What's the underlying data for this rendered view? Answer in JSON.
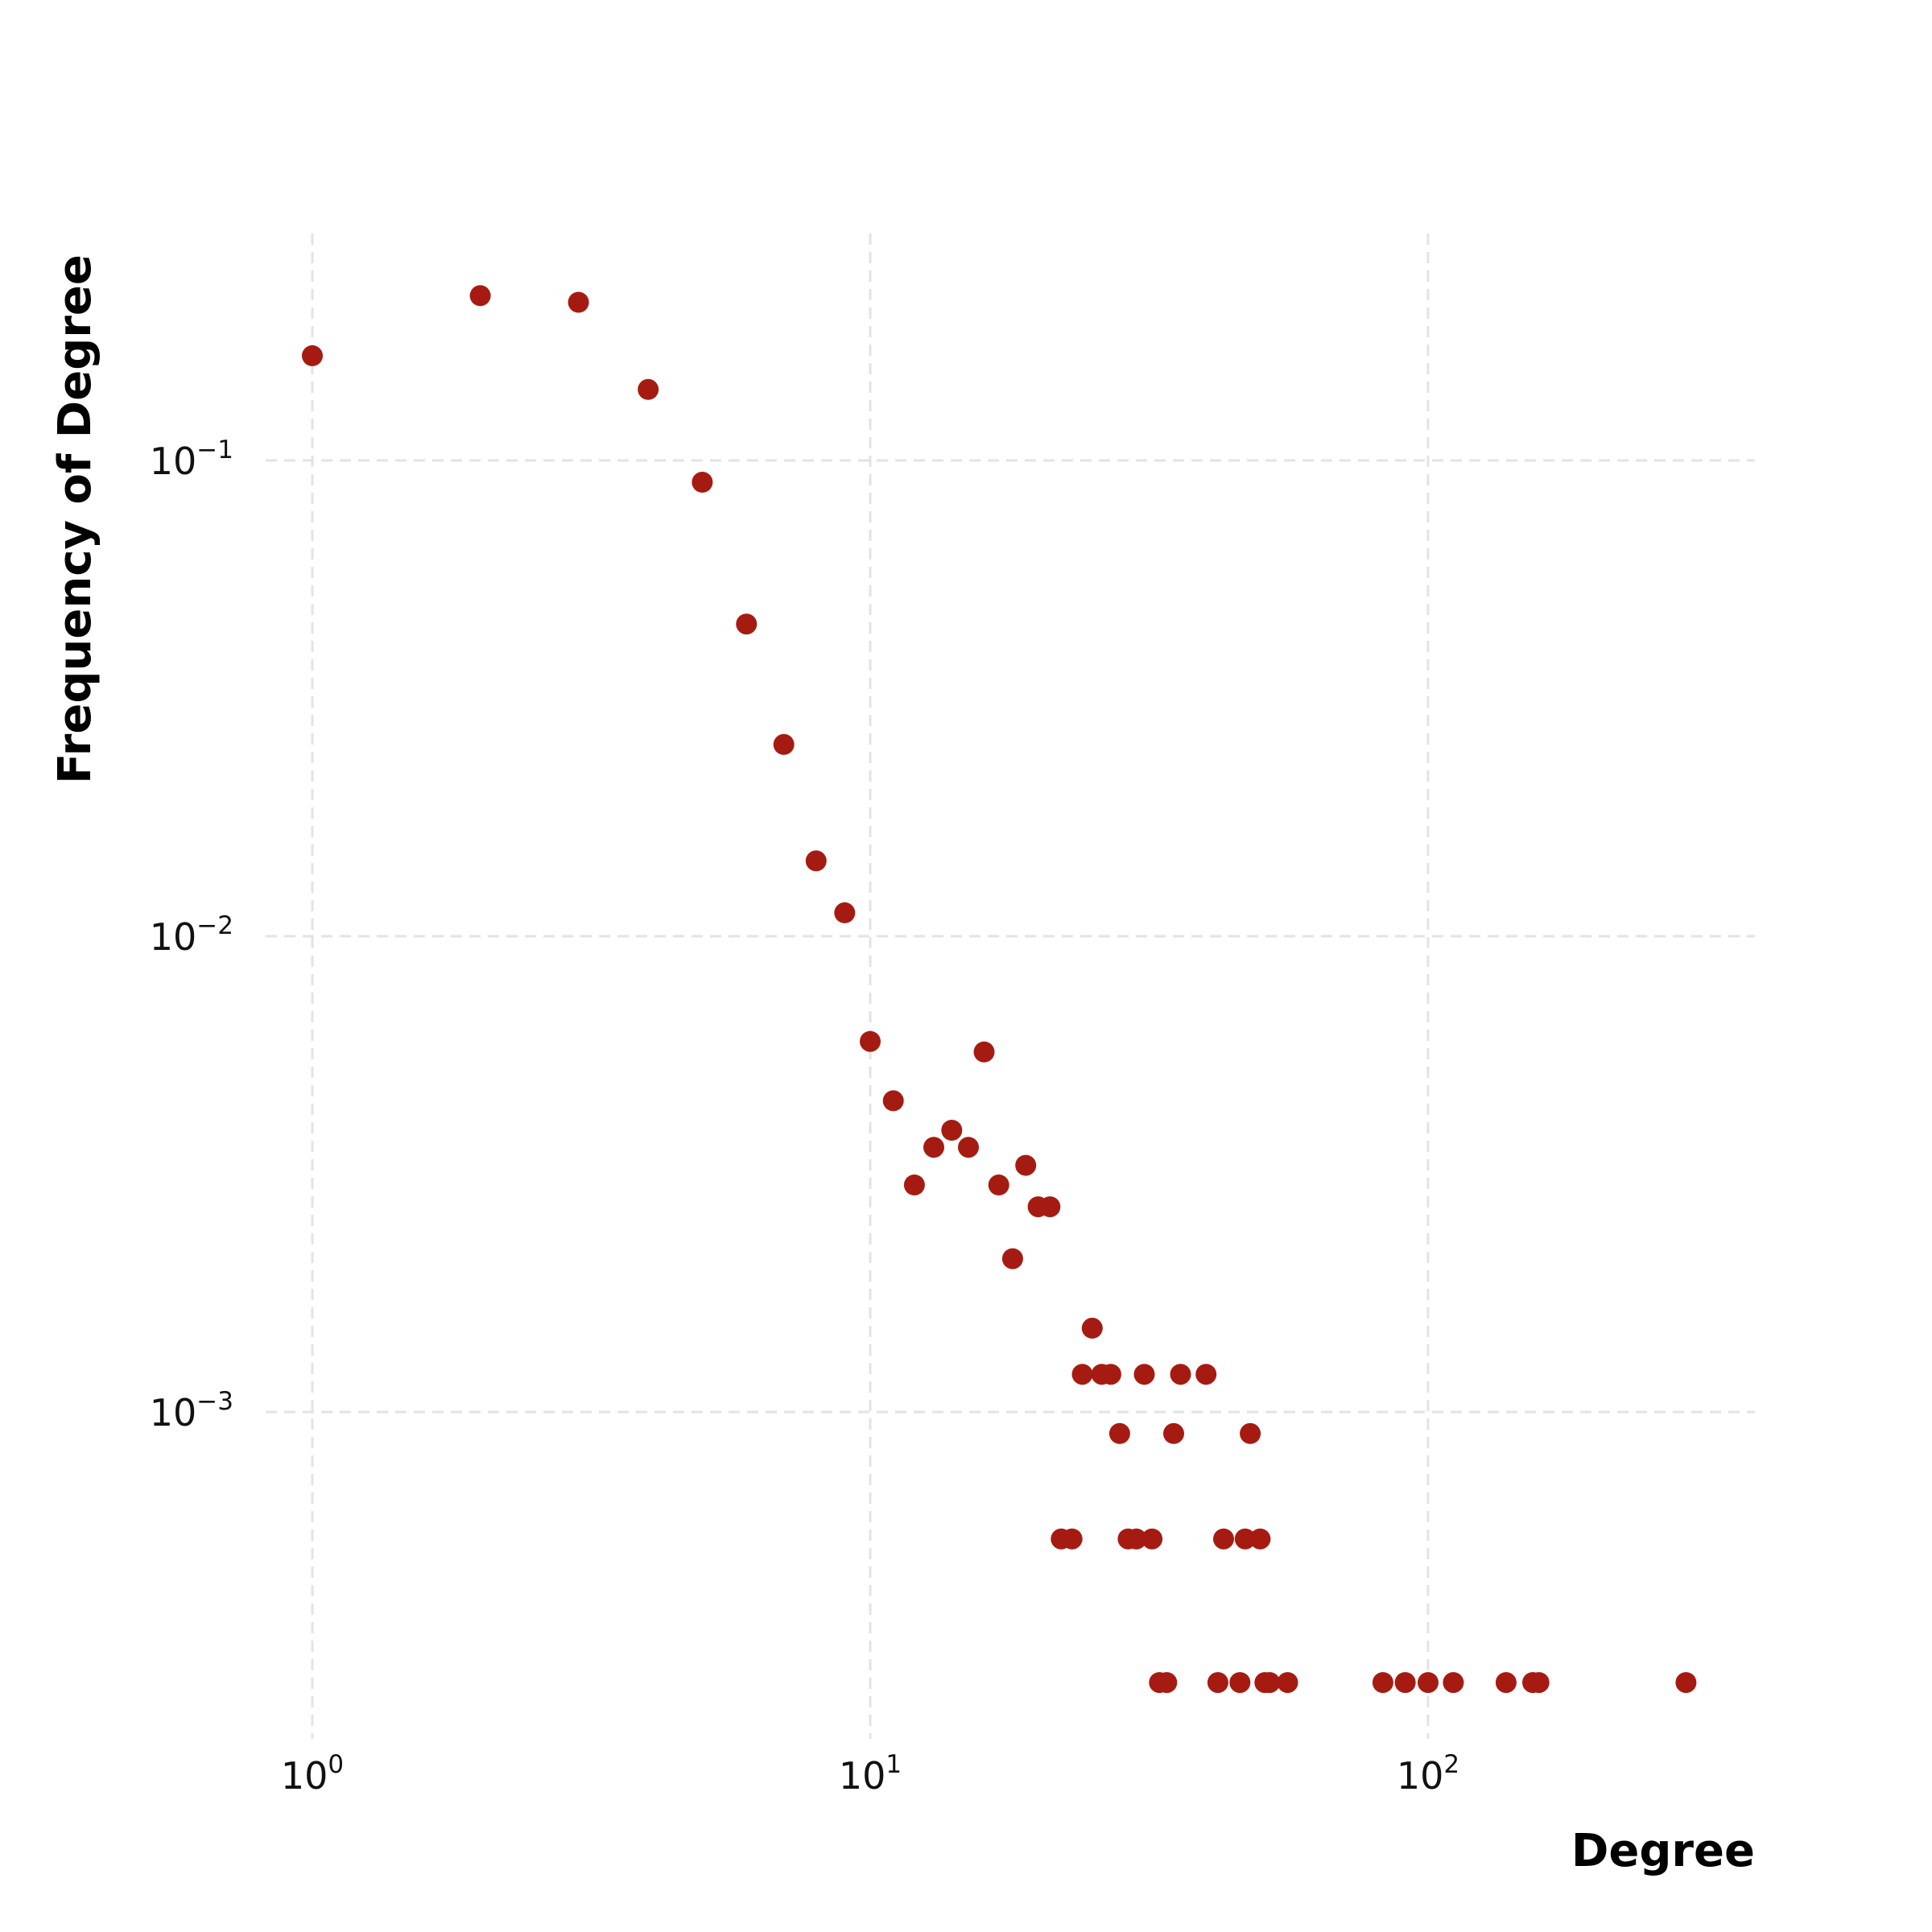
{
  "chart_data": {
    "type": "scatter",
    "title": "",
    "xlabel": "Degree",
    "ylabel": "Frequency of Degree",
    "x_scale": "log",
    "y_scale": "log",
    "xlim": [
      0.56,
      470
    ],
    "ylim": [
      0.00019,
      0.52
    ],
    "grid": true,
    "legend": "none",
    "point_color": "#a61b11",
    "x_ticks": [
      {
        "value": 1,
        "base": "10",
        "exp": "0"
      },
      {
        "value": 10,
        "base": "10",
        "exp": "1"
      },
      {
        "value": 100,
        "base": "10",
        "exp": "2"
      }
    ],
    "y_ticks": [
      {
        "value": 0.1,
        "base": "10",
        "exp": "−1"
      },
      {
        "value": 0.01,
        "base": "10",
        "exp": "−2"
      },
      {
        "value": 0.001,
        "base": "10",
        "exp": "−3"
      }
    ],
    "series": [
      {
        "points": [
          [
            1,
            0.166
          ],
          [
            2,
            0.222
          ],
          [
            3,
            0.215
          ],
          [
            4,
            0.141
          ],
          [
            5,
            0.09
          ],
          [
            6,
            0.0453
          ],
          [
            7,
            0.0253
          ],
          [
            8,
            0.0144
          ],
          [
            9,
            0.0112
          ],
          [
            10,
            0.00601
          ],
          [
            11,
            0.00451
          ],
          [
            12,
            0.003
          ],
          [
            13,
            0.0036
          ],
          [
            14,
            0.00391
          ],
          [
            15,
            0.0036
          ],
          [
            16,
            0.00571
          ],
          [
            17,
            0.003
          ],
          [
            18,
            0.0021
          ],
          [
            19,
            0.0033
          ],
          [
            20,
            0.0027
          ],
          [
            21,
            0.0027
          ],
          [
            22,
            0.000541
          ],
          [
            23,
            0.000541
          ],
          [
            24,
            0.0012
          ],
          [
            25,
            0.0015
          ],
          [
            26,
            0.0012
          ],
          [
            27,
            0.0012
          ],
          [
            28,
            0.000901
          ],
          [
            29,
            0.000541
          ],
          [
            30,
            0.000541
          ],
          [
            31,
            0.0012
          ],
          [
            32,
            0.000541
          ],
          [
            33,
            0.00027
          ],
          [
            34,
            0.00027
          ],
          [
            35,
            0.000901
          ],
          [
            36,
            0.0012
          ],
          [
            40,
            0.0012
          ],
          [
            42,
            0.00027
          ],
          [
            43,
            0.000541
          ],
          [
            46,
            0.00027
          ],
          [
            47,
            0.000541
          ],
          [
            48,
            0.000901
          ],
          [
            50,
            0.000541
          ],
          [
            51,
            0.00027
          ],
          [
            52,
            0.00027
          ],
          [
            56,
            0.00027
          ],
          [
            83,
            0.00027
          ],
          [
            91,
            0.00027
          ],
          [
            100,
            0.00027
          ],
          [
            111,
            0.00027
          ],
          [
            138,
            0.00027
          ],
          [
            154,
            0.00027
          ],
          [
            158,
            0.00027
          ],
          [
            290,
            0.00027
          ]
        ]
      }
    ]
  }
}
